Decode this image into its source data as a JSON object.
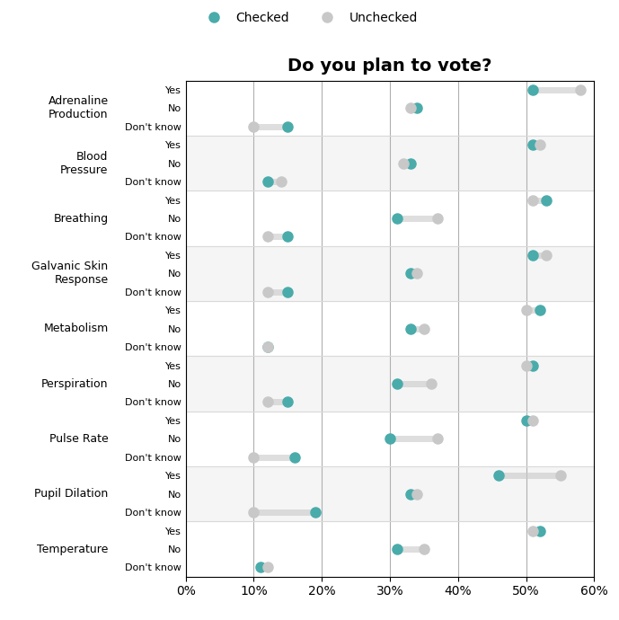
{
  "chart_data": {
    "type": "dumbbell",
    "title": "Do you plan to vote?",
    "orientation": "horizontal",
    "categories": [
      "Adrenaline\nProduction",
      "Blood\nPressure",
      "Breathing",
      "Galvanic Skin\nResponse",
      "Metabolism",
      "Perspiration",
      "Pulse Rate",
      "Pupil Dilation",
      "Temperature"
    ],
    "subcategories": [
      "Yes",
      "No",
      "Don't know"
    ],
    "series": [
      {
        "name": "Checked",
        "color": "#4AABAB",
        "marker": "circle",
        "values": [
          [
            51,
            34,
            15
          ],
          [
            51,
            33,
            12
          ],
          [
            53,
            31,
            15
          ],
          [
            51,
            33,
            15
          ],
          [
            52,
            33,
            12
          ],
          [
            51,
            31,
            15
          ],
          [
            50,
            30,
            16
          ],
          [
            46,
            33,
            19
          ],
          [
            52,
            31,
            11
          ]
        ]
      },
      {
        "name": "Unchecked",
        "color": "#C8C8C8",
        "marker": "circle",
        "values": [
          [
            58,
            33,
            10
          ],
          [
            52,
            32,
            14
          ],
          [
            51,
            37,
            12
          ],
          [
            53,
            34,
            12
          ],
          [
            50,
            35,
            12
          ],
          [
            50,
            36,
            12
          ],
          [
            51,
            37,
            10
          ],
          [
            55,
            34,
            10
          ],
          [
            51,
            35,
            12
          ]
        ]
      }
    ],
    "xlim": [
      0,
      60
    ],
    "xticks": [
      {
        "value": 0,
        "label": "0%"
      },
      {
        "value": 10,
        "label": "10%"
      },
      {
        "value": 20,
        "label": "20%"
      },
      {
        "value": 30,
        "label": "30%"
      },
      {
        "value": 40,
        "label": "40%"
      },
      {
        "value": 50,
        "label": "50%"
      },
      {
        "value": 60,
        "label": "60%"
      }
    ],
    "grid": true,
    "legend": "upper center"
  }
}
